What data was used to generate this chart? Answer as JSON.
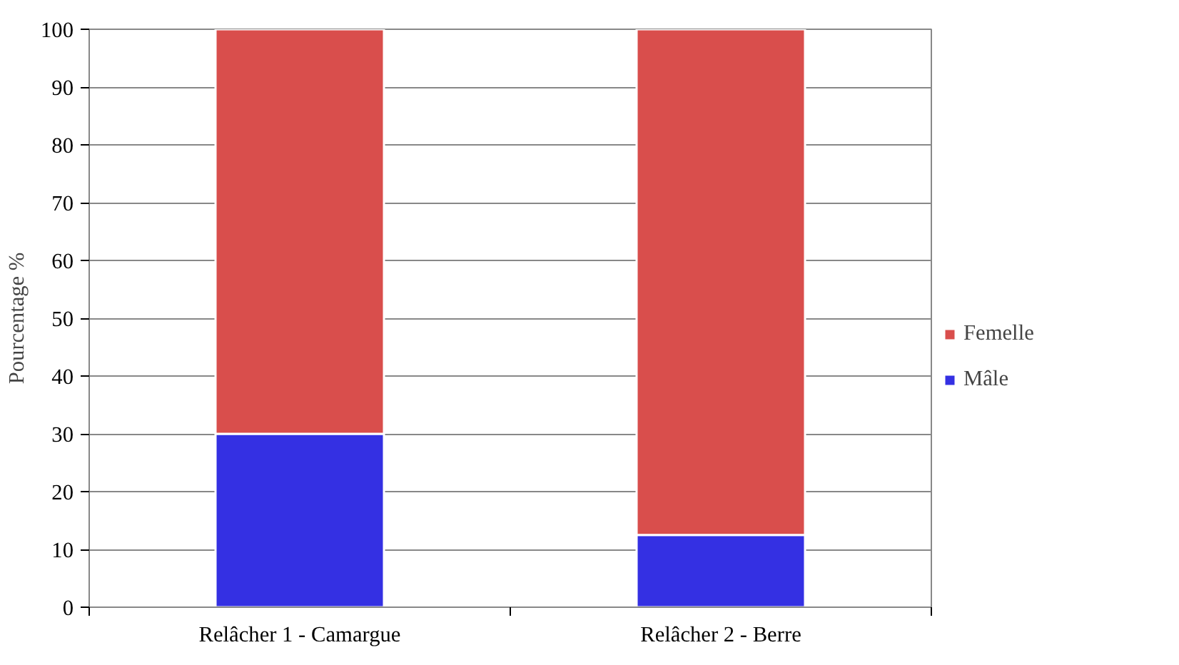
{
  "chart_data": {
    "type": "bar",
    "stacked": true,
    "ylabel": "Pourcentage %",
    "categories": [
      "Relâcher 1 - Camargue",
      "Relâcher 2 - Berre"
    ],
    "series": [
      {
        "name": "Mâle",
        "color": "#3430e3",
        "values": [
          30,
          12.5
        ]
      },
      {
        "name": "Femelle",
        "color": "#d94e4c",
        "values": [
          70,
          87.5
        ]
      }
    ],
    "ylim": [
      0,
      100
    ],
    "yticks": [
      0,
      10,
      20,
      30,
      40,
      50,
      60,
      70,
      80,
      90,
      100
    ],
    "grid": "y",
    "legend": "right"
  }
}
